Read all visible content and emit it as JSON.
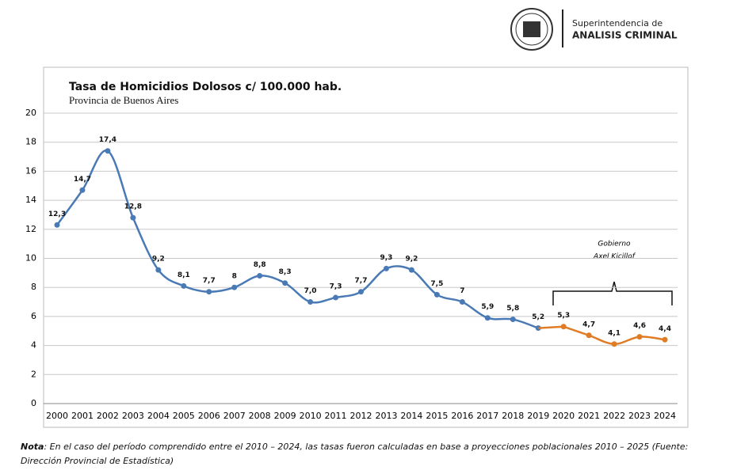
{
  "header": {
    "org_line1": "Superintendencia de",
    "org_line2": "ANALISIS CRIMINAL"
  },
  "chart_data": {
    "type": "line",
    "title": "Tasa de Homicidios Dolosos c/ 100.000 hab.",
    "subtitle": "Provincia de Buenos Aires",
    "categories": [
      "2000",
      "2001",
      "2002",
      "2003",
      "2004",
      "2005",
      "2006",
      "2007",
      "2008",
      "2009",
      "2010",
      "2011",
      "2012",
      "2013",
      "2014",
      "2015",
      "2016",
      "2017",
      "2018",
      "2019",
      "2020",
      "2021",
      "2022",
      "2023",
      "2024"
    ],
    "series": [
      {
        "color": "#4a7ab5",
        "values": [
          12.3,
          14.7,
          17.4,
          12.8,
          9.2,
          8.1,
          7.7,
          8,
          8.8,
          8.3,
          7.0,
          7.3,
          7.7,
          9.3,
          9.2,
          7.5,
          7,
          5.9,
          5.8,
          5.2,
          null,
          null,
          null,
          null,
          null
        ],
        "value_labels": [
          "12,3",
          "14,7",
          "17,4",
          "12,8",
          "9,2",
          "8,1",
          "7,7",
          "8",
          "8,8",
          "8,3",
          "7,0",
          "7,3",
          "7,7",
          "9,3",
          "9,2",
          "7,5",
          "7",
          "5,9",
          "5,8",
          "5,2",
          null,
          null,
          null,
          null,
          null
        ]
      },
      {
        "color": "#e07b26",
        "values": [
          null,
          null,
          null,
          null,
          null,
          null,
          null,
          null,
          null,
          null,
          null,
          null,
          null,
          null,
          null,
          null,
          null,
          null,
          null,
          null,
          5.3,
          4.7,
          4.1,
          4.6,
          4.4
        ],
        "value_labels": [
          null,
          null,
          null,
          null,
          null,
          null,
          null,
          null,
          null,
          null,
          null,
          null,
          null,
          null,
          null,
          null,
          null,
          null,
          null,
          null,
          "5,3",
          "4,7",
          "4,1",
          "4,6",
          "4,4"
        ]
      }
    ],
    "ylim": [
      0,
      20
    ],
    "yticks": [
      0,
      2,
      4,
      6,
      8,
      10,
      12,
      14,
      16,
      18,
      20
    ],
    "grid": true,
    "annotation": {
      "line1": "Gobierno",
      "line2": "Axel Kicillof"
    }
  },
  "note": {
    "label": "Nota",
    "text": ": En el caso del período comprendido entre el 2010 – 2024, las tasas fueron calculadas en base a proyecciones poblacionales 2010 – 2025 (Fuente: Dirección Provincial de Estadística)"
  }
}
